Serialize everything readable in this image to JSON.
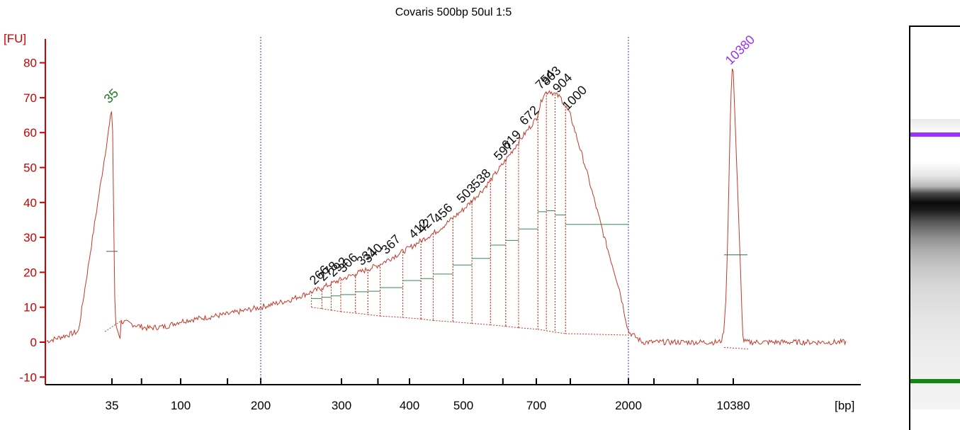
{
  "chart_data": {
    "type": "line",
    "title": "Covaris 500bp 50ul 1:5",
    "ylabel": "[FU]",
    "xlabel": "[bp]",
    "ylim": [
      -12,
      86
    ],
    "yticks": [
      -10,
      0,
      10,
      20,
      30,
      40,
      50,
      60,
      70,
      80
    ],
    "xticks": [
      "35",
      "100",
      "200",
      "300",
      "400",
      "500",
      "700",
      "2000",
      "10380"
    ],
    "x_scale": "electropherogram (non-linear)",
    "marker_peaks": [
      {
        "label": "35",
        "peak_fu": 67,
        "color": "#1a7a1a"
      },
      {
        "label": "10380",
        "peak_fu": 78,
        "color": "#9b30ff"
      }
    ],
    "fragment_peaks": [
      "266",
      "278",
      "292",
      "306",
      "331",
      "340",
      "367",
      "412",
      "427",
      "456",
      "503",
      "538",
      "597",
      "619",
      "672",
      "754",
      "803",
      "904",
      "1000"
    ],
    "trace": [
      [
        "40",
        1
      ],
      [
        "33",
        0
      ],
      [
        "34",
        3
      ],
      [
        "35",
        67
      ],
      [
        "35.5",
        7
      ],
      [
        "40",
        6
      ],
      [
        "60",
        4
      ],
      [
        "80",
        4.5
      ],
      [
        "100",
        6
      ],
      [
        "150",
        8
      ],
      [
        "200",
        10
      ],
      [
        "230",
        12
      ],
      [
        "266",
        15
      ],
      [
        "300",
        18
      ],
      [
        "350",
        22
      ],
      [
        "400",
        27
      ],
      [
        "450",
        32
      ],
      [
        "500",
        38
      ],
      [
        "550",
        44
      ],
      [
        "600",
        51
      ],
      [
        "650",
        58
      ],
      [
        "700",
        64
      ],
      [
        "754",
        71
      ],
      [
        "803",
        72
      ],
      [
        "904",
        70
      ],
      [
        "1000",
        65
      ],
      [
        "1200",
        50
      ],
      [
        "1500",
        30
      ],
      [
        "1800",
        15
      ],
      [
        "2000",
        3
      ],
      [
        "2500",
        0
      ],
      [
        "5000",
        -1
      ],
      [
        "10000",
        0
      ],
      [
        "10380",
        78
      ],
      [
        "11000",
        -2
      ],
      [
        "15000",
        -3
      ],
      [
        "20000",
        -3
      ]
    ],
    "colors": {
      "trace": "#c0392b",
      "axis": "#cc0000",
      "baseline": "#2e8b57",
      "guide": "#3a3aa0"
    }
  },
  "gel": {
    "upper_marker_color": "#9b30ff",
    "lower_marker_color": "#118811"
  }
}
